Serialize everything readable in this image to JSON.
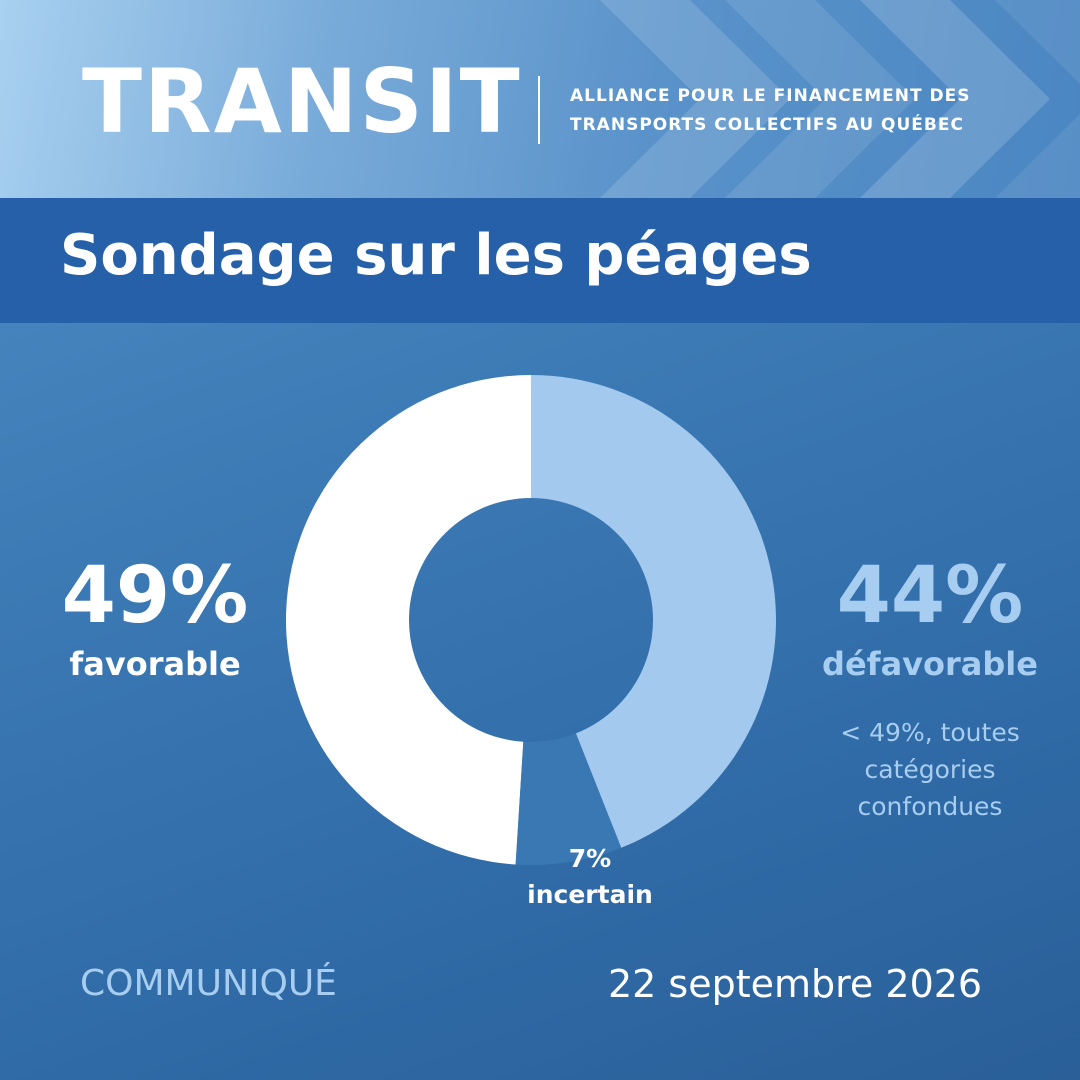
{
  "header": {
    "brand": "TRANSIT",
    "org_line_1": "ALLIANCE POUR LE FINANCEMENT DES",
    "org_line_2": "TRANSPORTS COLLECTIFS AU QUÉBEC"
  },
  "banner": {
    "title": "Sondage sur les péages"
  },
  "chart_data": {
    "type": "pie",
    "title": "Sondage sur les péages",
    "slices": [
      {
        "label": "favorable",
        "value": 49,
        "display": "49%",
        "color": "#ffffff"
      },
      {
        "label": "défavorable",
        "value": 44,
        "display": "44%",
        "color": "#a3c9ee"
      },
      {
        "label": "incertain",
        "value": 7,
        "display": "7%",
        "color": "#3a78b4"
      }
    ],
    "annotations": {
      "defavorable_note_1": "< 49%, toutes",
      "defavorable_note_2": "catégories",
      "defavorable_note_3": "confondues"
    }
  },
  "footer": {
    "label": "COMMUNIQUÉ",
    "date": "22 septembre 2026"
  },
  "colors": {
    "banner": "#2660a8",
    "accent_light": "#a7cdf0",
    "text": "#ffffff"
  }
}
